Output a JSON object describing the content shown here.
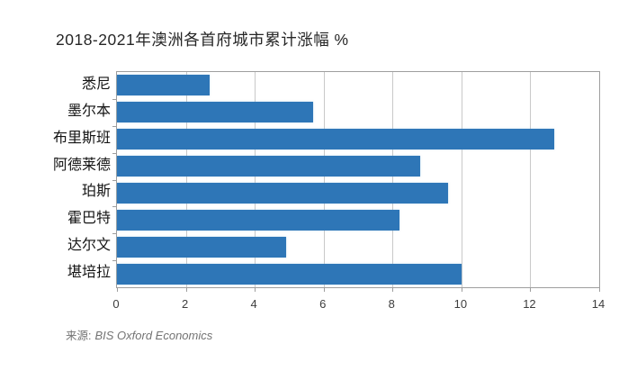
{
  "chart_data": {
    "type": "bar",
    "orientation": "horizontal",
    "title": "2018-2021年澳洲各首府城市累计涨幅 %",
    "categories": [
      "悉尼",
      "墨尔本",
      "布里斯班",
      "阿德莱德",
      "珀斯",
      "霍巴特",
      "达尔文",
      "堪培拉"
    ],
    "values": [
      2.7,
      5.7,
      12.7,
      8.8,
      9.6,
      8.2,
      4.9,
      10.0
    ],
    "xlabel": "",
    "ylabel": "",
    "xlim": [
      0,
      14
    ],
    "x_ticks": [
      0,
      2,
      4,
      6,
      8,
      10,
      12,
      14
    ],
    "grid": "vertical",
    "legend": "none",
    "bar_color": "#2E76B7",
    "gridline_color": "#c9c9c9",
    "axis_border_color": "#9e9e9e"
  },
  "source": {
    "label": "来源:",
    "name": "BIS Oxford Economics"
  }
}
